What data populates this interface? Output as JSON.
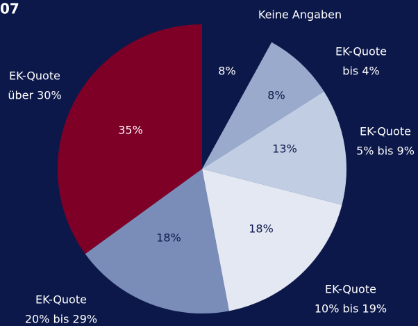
{
  "chart_data": {
    "type": "pie",
    "title": "07",
    "categories": [
      [
        "Keine Angaben"
      ],
      [
        "EK-Quote",
        "bis 4%"
      ],
      [
        "EK-Quote",
        "5% bis 9%"
      ],
      [
        "EK-Quote",
        "10% bis 19%"
      ],
      [
        "EK-Quote",
        "20% bis 29%"
      ],
      [
        "EK-Quote",
        "über 30%"
      ]
    ],
    "values": [
      8,
      8,
      13,
      18,
      18,
      35
    ],
    "value_labels": [
      "8%",
      "8%",
      "13%",
      "18%",
      "18%",
      "35%"
    ],
    "colors": [
      "#0c1849",
      "#99aacc",
      "#c0cde3",
      "#e3e8f2",
      "#7a8db9",
      "#7f0027"
    ]
  }
}
